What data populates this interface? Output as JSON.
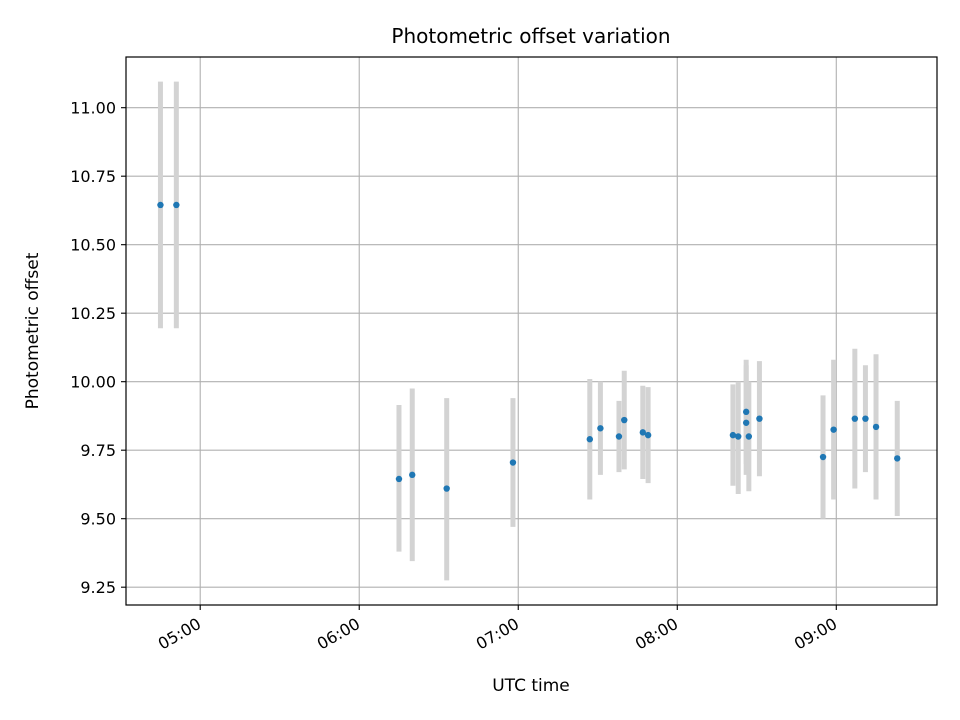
{
  "chart_data": {
    "type": "scatter",
    "title": "Photometric offset variation",
    "xlabel": "UTC time",
    "ylabel": "Photometric offset",
    "x_ticks": [
      "05:00",
      "06:00",
      "07:00",
      "08:00",
      "09:00"
    ],
    "y_ticks": [
      "9.25",
      "9.50",
      "9.75",
      "10.00",
      "10.25",
      "10.50",
      "10.75",
      "11.00"
    ],
    "ylim": [
      9.185,
      11.185
    ],
    "xlim": [
      "04:32",
      "09:38"
    ],
    "grid": true,
    "colors": {
      "points": "#1f77b4",
      "error_bars": "#d3d3d3",
      "grid": "#b0b0b0"
    },
    "points": [
      {
        "x": "04:45",
        "y": 10.645,
        "ylow": 10.195,
        "yhigh": 11.095
      },
      {
        "x": "04:51",
        "y": 10.645,
        "ylow": 10.195,
        "yhigh": 11.095
      },
      {
        "x": "06:15",
        "y": 9.645,
        "ylow": 9.38,
        "yhigh": 9.915
      },
      {
        "x": "06:20",
        "y": 9.66,
        "ylow": 9.345,
        "yhigh": 9.975
      },
      {
        "x": "06:33",
        "y": 9.61,
        "ylow": 9.275,
        "yhigh": 9.94
      },
      {
        "x": "06:58",
        "y": 9.705,
        "ylow": 9.47,
        "yhigh": 9.94
      },
      {
        "x": "07:27",
        "y": 9.79,
        "ylow": 9.57,
        "yhigh": 10.01
      },
      {
        "x": "07:31",
        "y": 9.83,
        "ylow": 9.66,
        "yhigh": 10.0
      },
      {
        "x": "07:38",
        "y": 9.8,
        "ylow": 9.67,
        "yhigh": 9.93
      },
      {
        "x": "07:40",
        "y": 9.86,
        "ylow": 9.68,
        "yhigh": 10.04
      },
      {
        "x": "07:47",
        "y": 9.815,
        "ylow": 9.645,
        "yhigh": 9.985
      },
      {
        "x": "07:49",
        "y": 9.805,
        "ylow": 9.63,
        "yhigh": 9.98
      },
      {
        "x": "08:21",
        "y": 9.805,
        "ylow": 9.62,
        "yhigh": 9.99
      },
      {
        "x": "08:23",
        "y": 9.8,
        "ylow": 9.59,
        "yhigh": 10.0
      },
      {
        "x": "08:26",
        "y": 9.89,
        "ylow": 9.7,
        "yhigh": 10.08
      },
      {
        "x": "08:26",
        "y": 9.85,
        "ylow": 9.66,
        "yhigh": 10.06
      },
      {
        "x": "08:27",
        "y": 9.8,
        "ylow": 9.6,
        "yhigh": 10.0
      },
      {
        "x": "08:31",
        "y": 9.865,
        "ylow": 9.655,
        "yhigh": 10.075
      },
      {
        "x": "08:55",
        "y": 9.725,
        "ylow": 9.5,
        "yhigh": 9.95
      },
      {
        "x": "08:59",
        "y": 9.825,
        "ylow": 9.57,
        "yhigh": 10.08
      },
      {
        "x": "09:07",
        "y": 9.865,
        "ylow": 9.61,
        "yhigh": 10.12
      },
      {
        "x": "09:11",
        "y": 9.865,
        "ylow": 9.67,
        "yhigh": 10.06
      },
      {
        "x": "09:15",
        "y": 9.835,
        "ylow": 9.57,
        "yhigh": 10.1
      },
      {
        "x": "09:23",
        "y": 9.72,
        "ylow": 9.51,
        "yhigh": 9.93
      }
    ]
  }
}
